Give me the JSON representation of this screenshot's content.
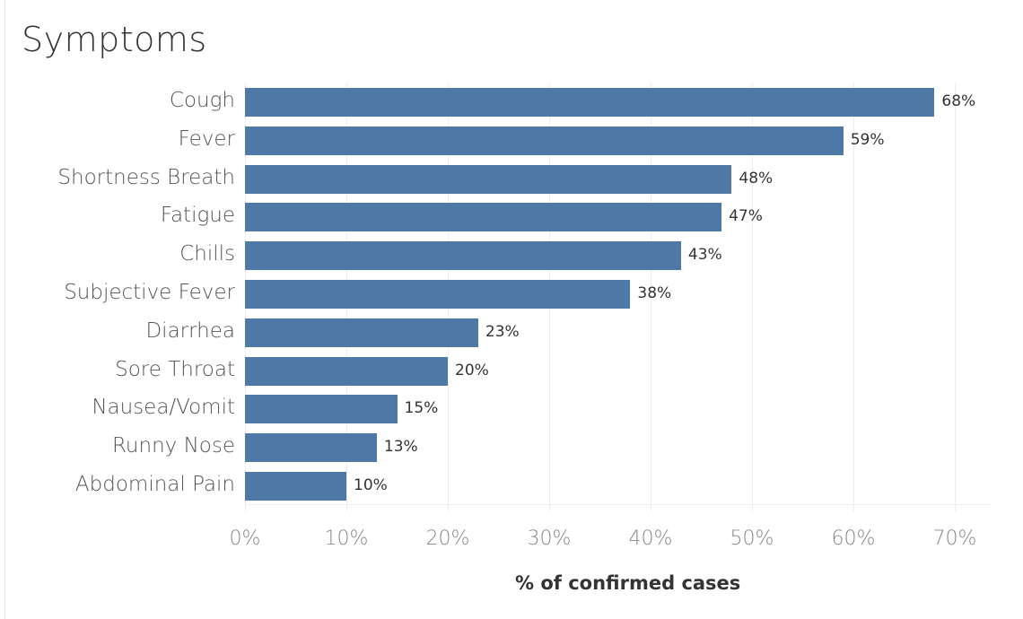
{
  "chart_data": {
    "type": "bar",
    "orientation": "horizontal",
    "title": "Symptoms",
    "xlabel": "% of confirmed cases",
    "ylabel": "",
    "categories": [
      "Cough",
      "Fever",
      "Shortness Breath",
      "Fatigue",
      "Chills",
      "Subjective Fever",
      "Diarrhea",
      "Sore Throat",
      "Nausea/Vomit",
      "Runny Nose",
      "Abdominal Pain"
    ],
    "values": [
      68,
      59,
      48,
      47,
      43,
      38,
      23,
      20,
      15,
      13,
      10
    ],
    "value_labels": [
      "68%",
      "59%",
      "48%",
      "47%",
      "43%",
      "38%",
      "23%",
      "20%",
      "15%",
      "13%",
      "10%"
    ],
    "xlim": [
      0,
      73
    ],
    "x_ticks": [
      "0%",
      "10%",
      "20%",
      "30%",
      "40%",
      "50%",
      "60%",
      "70%"
    ],
    "grid": true,
    "legend": null,
    "bar_color": "#4e79a7"
  }
}
